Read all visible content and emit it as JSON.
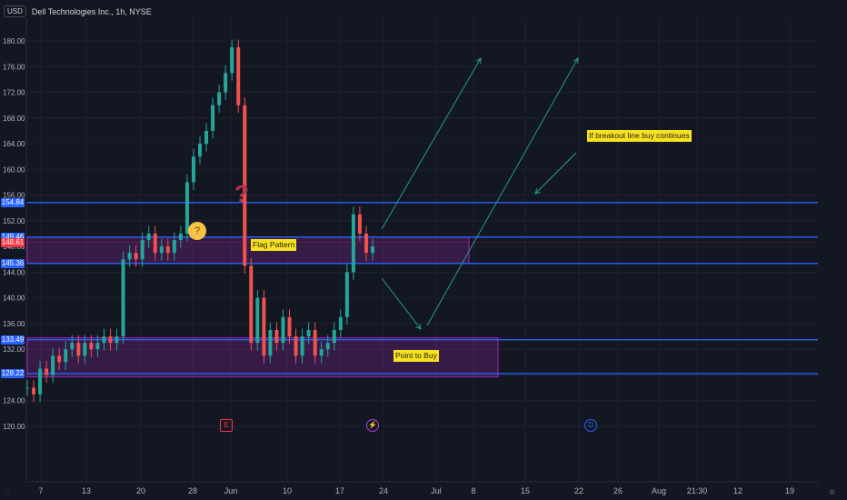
{
  "header": {
    "currency_label": "USD",
    "symbol_title": "Dell Technologies Inc., 1h, NYSE"
  },
  "chart_data": {
    "type": "candlestick",
    "ylim": [
      118,
      182
    ],
    "y_ticks": [
      "180.00",
      "176.00",
      "172.00",
      "168.00",
      "164.00",
      "160.00",
      "156.00",
      "152.00",
      "148.00",
      "144.00",
      "140.00",
      "136.00",
      "132.00",
      "128.00",
      "124.00",
      "120.00"
    ],
    "x_ticks": [
      "7",
      "13",
      "20",
      "28",
      "Jun",
      "10",
      "17",
      "24",
      "Jul",
      "8",
      "15",
      "22",
      "26",
      "Aug",
      "21:30",
      "12",
      "19"
    ],
    "levels": [
      {
        "price": 154.84,
        "label": "154.84",
        "color": "#2962ff"
      },
      {
        "price": 149.46,
        "label": "149.46",
        "color": "#2962ff"
      },
      {
        "price": 148.61,
        "label": "148.61",
        "color": "#f23645"
      },
      {
        "price": 145.36,
        "label": "145.36",
        "color": "#2962ff"
      },
      {
        "price": 133.49,
        "label": "133.49",
        "color": "#2962ff"
      },
      {
        "price": 128.22,
        "label": "128.22",
        "color": "#2962ff"
      }
    ],
    "price_path_approx": [
      126,
      125,
      129,
      128,
      131,
      130,
      132,
      133,
      131,
      133,
      132,
      133,
      134,
      133,
      134,
      146,
      147,
      146,
      149,
      150,
      147,
      148,
      147,
      149,
      150,
      158,
      162,
      164,
      166,
      170,
      172,
      175,
      179,
      170,
      145,
      133,
      140,
      131,
      135,
      133,
      137,
      134,
      131,
      134,
      135,
      131,
      132,
      133,
      135,
      137,
      144,
      153,
      150,
      147,
      148
    ],
    "annotations": {
      "flag_pattern": "Flag Pattern",
      "point_to_buy": "Point to Buy",
      "breakout_note": "If breakout line buy continues",
      "question_mark": "?"
    },
    "event_markers": [
      "E",
      "⚡",
      "D"
    ]
  }
}
